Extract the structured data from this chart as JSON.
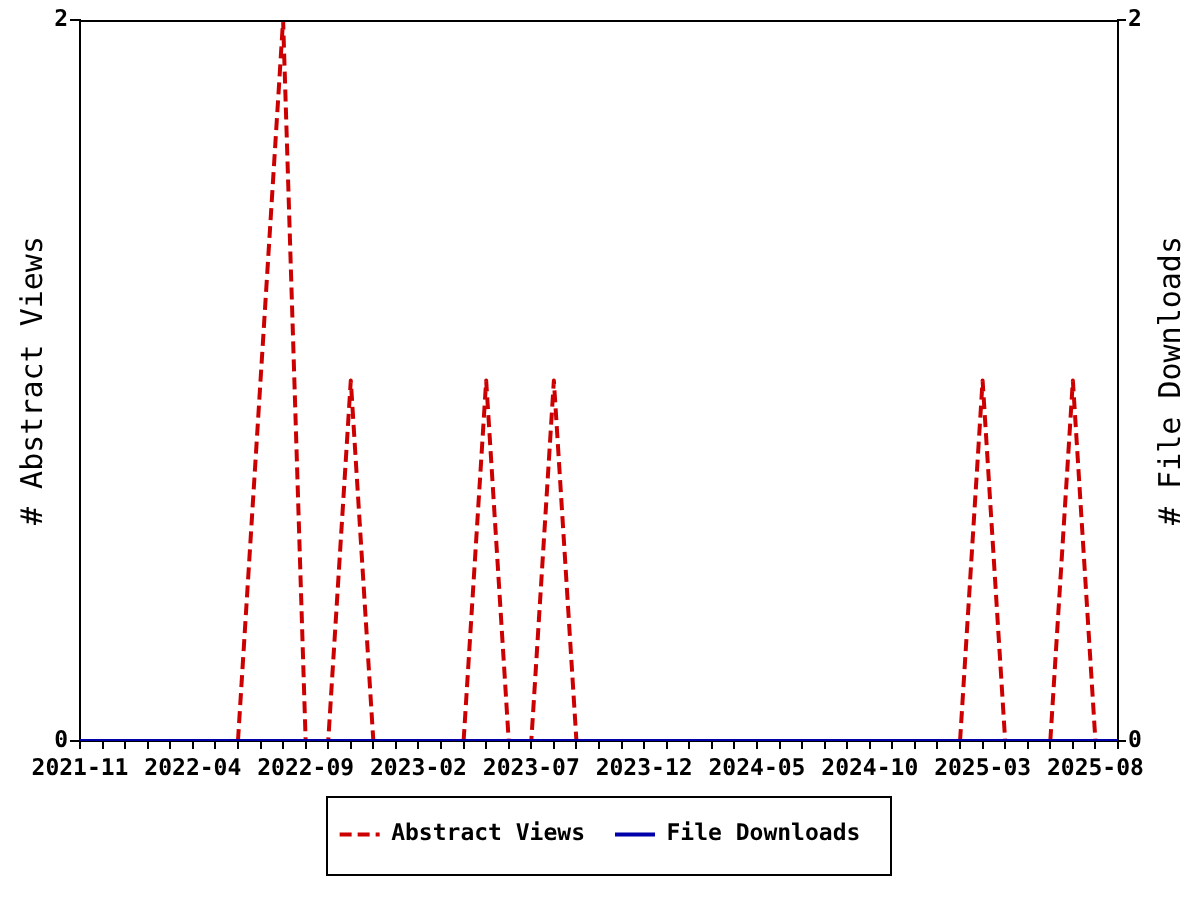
{
  "chart_data": {
    "type": "line",
    "x": [
      "2021-11",
      "2021-12",
      "2022-01",
      "2022-02",
      "2022-03",
      "2022-04",
      "2022-05",
      "2022-06",
      "2022-07",
      "2022-08",
      "2022-09",
      "2022-10",
      "2022-11",
      "2022-12",
      "2023-01",
      "2023-02",
      "2023-03",
      "2023-04",
      "2023-05",
      "2023-06",
      "2023-07",
      "2023-08",
      "2023-09",
      "2023-10",
      "2023-11",
      "2023-12",
      "2024-01",
      "2024-02",
      "2024-03",
      "2024-04",
      "2024-05",
      "2024-06",
      "2024-07",
      "2024-08",
      "2024-09",
      "2024-10",
      "2024-11",
      "2024-12",
      "2025-01",
      "2025-02",
      "2025-03",
      "2025-04",
      "2025-05",
      "2025-06",
      "2025-07",
      "2025-08",
      "2025-09"
    ],
    "xlim": [
      "2021-11",
      "2025-09"
    ],
    "xticks": [
      "2021-11",
      {
        "value": "2021-12",
        "label": null
      },
      {
        "value": "2022-01",
        "label": null
      },
      {
        "value": "2022-02",
        "label": null
      },
      {
        "value": "2022-03",
        "label": null
      },
      "2022-04",
      {
        "value": "2022-05",
        "label": null
      },
      {
        "value": "2022-06",
        "label": null
      },
      {
        "value": "2022-07",
        "label": null
      },
      {
        "value": "2022-08",
        "label": null
      },
      "2022-09",
      {
        "value": "2022-10",
        "label": null
      },
      {
        "value": "2022-11",
        "label": null
      },
      {
        "value": "2022-12",
        "label": null
      },
      {
        "value": "2023-01",
        "label": null
      },
      "2023-02",
      {
        "value": "2023-03",
        "label": null
      },
      {
        "value": "2023-04",
        "label": null
      },
      {
        "value": "2023-05",
        "label": null
      },
      {
        "value": "2023-06",
        "label": null
      },
      "2023-07",
      {
        "value": "2023-08",
        "label": null
      },
      {
        "value": "2023-09",
        "label": null
      },
      {
        "value": "2023-10",
        "label": null
      },
      {
        "value": "2023-11",
        "label": null
      },
      "2023-12",
      {
        "value": "2024-01",
        "label": null
      },
      {
        "value": "2024-02",
        "label": null
      },
      {
        "value": "2024-03",
        "label": null
      },
      {
        "value": "2024-04",
        "label": null
      },
      "2024-05",
      {
        "value": "2024-06",
        "label": null
      },
      {
        "value": "2024-07",
        "label": null
      },
      {
        "value": "2024-08",
        "label": null
      },
      {
        "value": "2024-09",
        "label": null
      },
      "2024-10",
      {
        "value": "2024-11",
        "label": null
      },
      {
        "value": "2024-12",
        "label": null
      },
      {
        "value": "2025-01",
        "label": null
      },
      {
        "value": "2025-02",
        "label": null
      },
      "2025-03",
      {
        "value": "2025-04",
        "label": null
      },
      {
        "value": "2025-05",
        "label": null
      },
      {
        "value": "2025-06",
        "label": null
      },
      {
        "value": "2025-07",
        "label": null
      },
      "2025-08",
      {
        "value": "2025-09",
        "label": null
      }
    ],
    "ylabel": "# Abstract Views",
    "y2label": "# File Downloads",
    "ylim": [
      0,
      2
    ],
    "yticks": [
      0,
      2
    ],
    "y2lim": [
      0,
      2
    ],
    "y2ticks": [
      0,
      2
    ],
    "series": [
      {
        "name": "Abstract Views",
        "color": "#cc0000",
        "line_style": "dashed",
        "values": [
          null,
          null,
          null,
          null,
          null,
          null,
          null,
          0,
          1,
          2,
          0,
          0,
          1,
          0,
          null,
          null,
          null,
          0,
          1,
          0,
          0,
          1,
          0,
          null,
          null,
          null,
          null,
          null,
          null,
          null,
          null,
          null,
          null,
          null,
          null,
          null,
          null,
          null,
          null,
          0,
          1,
          0,
          null,
          0,
          1,
          0,
          null
        ]
      },
      {
        "name": "File Downloads",
        "color": "#0000aa",
        "line_style": "solid",
        "axis": "y2",
        "values": [
          0,
          0,
          0,
          0,
          0,
          0,
          0,
          0,
          0,
          0,
          0,
          0,
          0,
          0,
          0,
          0,
          0,
          0,
          0,
          0,
          0,
          0,
          0,
          0,
          0,
          0,
          0,
          0,
          0,
          0,
          0,
          0,
          0,
          0,
          0,
          0,
          0,
          0,
          0,
          0,
          0,
          0,
          0,
          0,
          0,
          0,
          0
        ]
      }
    ],
    "legend": "bottom",
    "grid": false
  }
}
